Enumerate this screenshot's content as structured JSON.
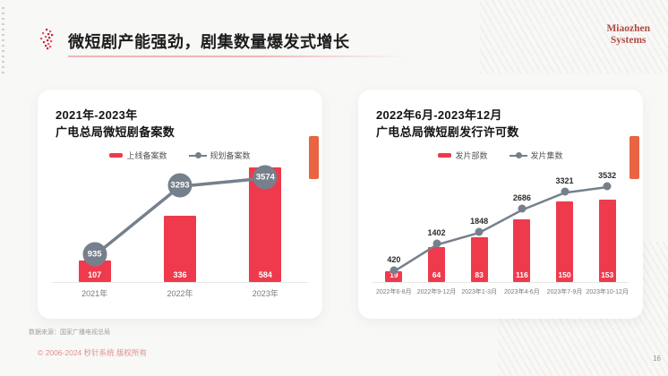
{
  "header": {
    "title": "微短剧产能强劲，剧集数量爆发式增长",
    "logo": {
      "line1": "Miaozhen",
      "line2": "Systems"
    }
  },
  "footer": {
    "source": "数据来源：国家广播电视总局",
    "copyright": "© 2006-2024 秒针系统 版权所有",
    "page_number": "16"
  },
  "colors": {
    "bar_red": "#EF3A4D",
    "line_gray": "#76808C",
    "accent_orange": "#E96442",
    "logo_red": "#B04A42",
    "copyright_pink": "#E09090"
  },
  "chart_data": [
    {
      "type": "bar",
      "subtype": "bar+line combo",
      "title_lines": [
        "2021年-2023年",
        "广电总局微短剧备案数"
      ],
      "categories": [
        "2021年",
        "2022年",
        "2023年"
      ],
      "series": [
        {
          "name": "上线备案数",
          "render": "bar",
          "color": "#EF3A4D",
          "values": [
            107,
            336,
            584
          ]
        },
        {
          "name": "规划备案数",
          "render": "line",
          "color": "#76808C",
          "values": [
            935,
            3293,
            3574
          ]
        }
      ],
      "legend_position": "top",
      "grid": false,
      "value_labels": true
    },
    {
      "type": "bar",
      "subtype": "bar+line combo",
      "title_lines": [
        "2022年6月-2023年12月",
        "广电总局微短剧发行许可数"
      ],
      "categories": [
        "2022年6-8月",
        "2022年9-12月",
        "2023年1-3月",
        "2023年4-6月",
        "2023年7-9月",
        "2023年10-12月"
      ],
      "series": [
        {
          "name": "发片部数",
          "render": "bar",
          "color": "#EF3A4D",
          "values": [
            19,
            64,
            83,
            116,
            150,
            153
          ]
        },
        {
          "name": "发片集数",
          "render": "line",
          "color": "#76808C",
          "values": [
            420,
            1402,
            1848,
            2686,
            3321,
            3532
          ]
        }
      ],
      "legend_position": "top",
      "grid": false,
      "value_labels": true
    }
  ]
}
